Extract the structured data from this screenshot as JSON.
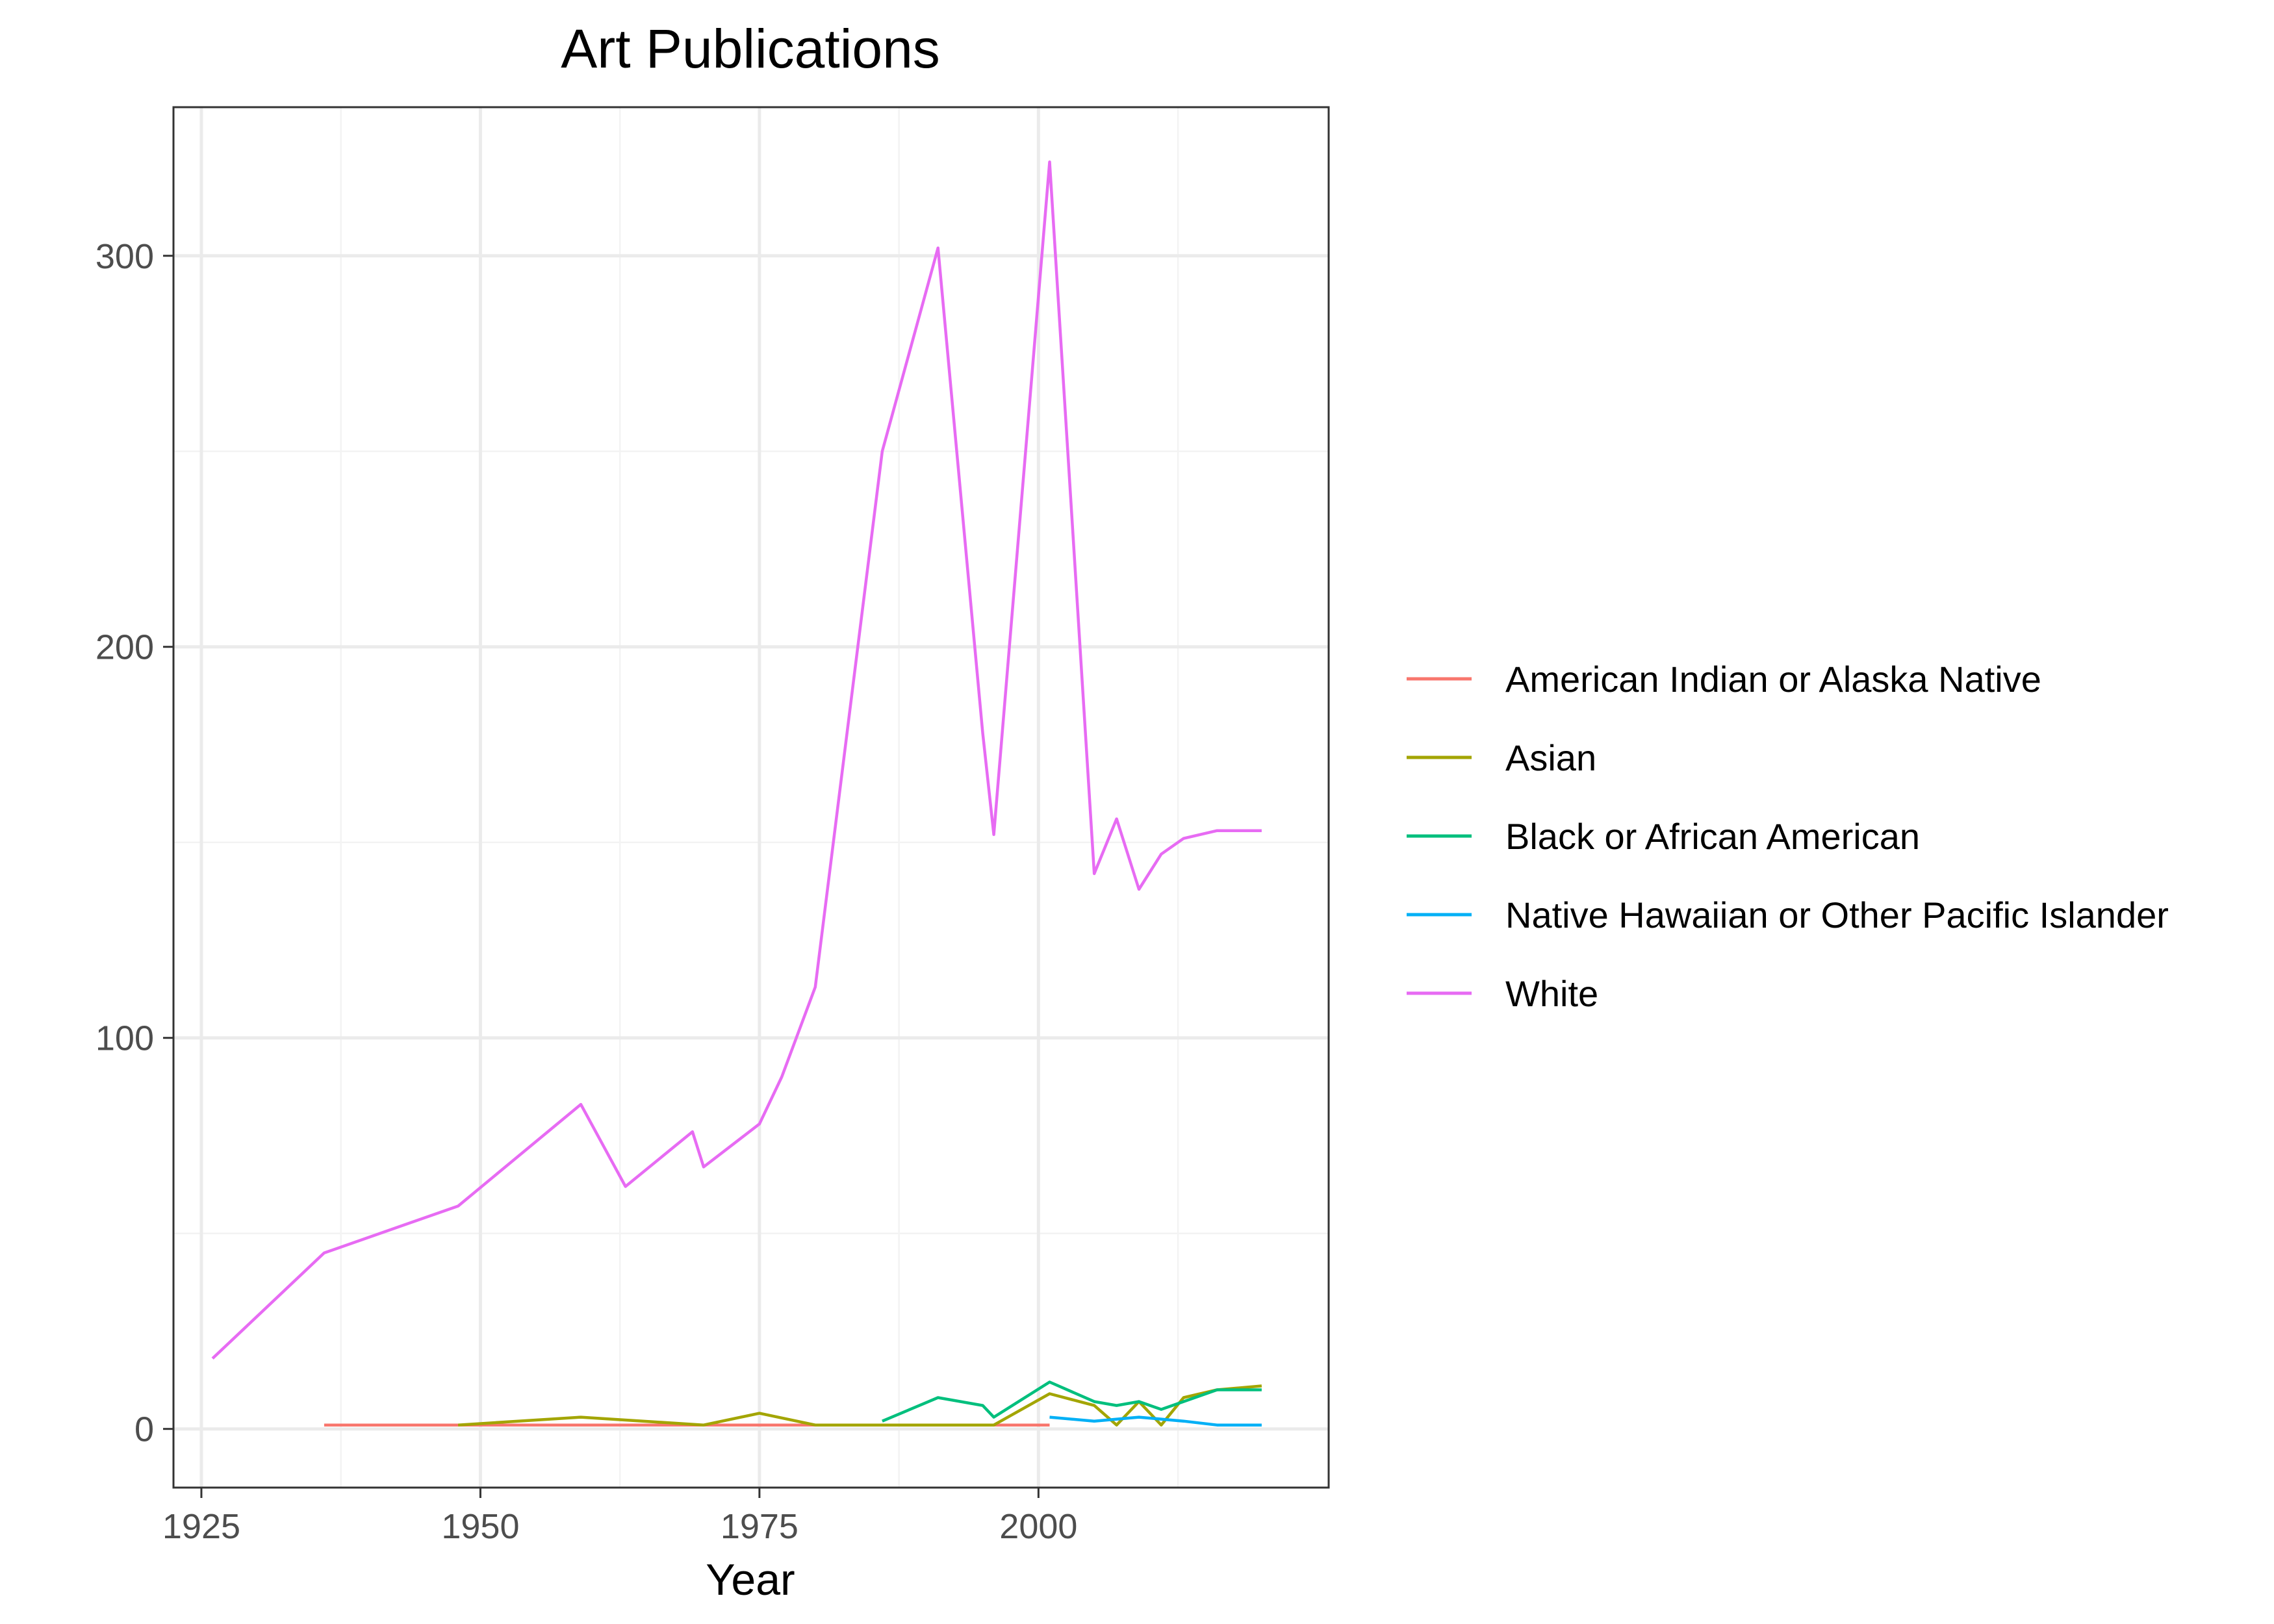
{
  "chart_data": {
    "type": "line",
    "title": "Art Publications",
    "xlabel": "Year",
    "ylabel": "",
    "xlim": [
      1922.5,
      2026
    ],
    "ylim": [
      -15,
      338
    ],
    "x_ticks": [
      1925,
      1950,
      1975,
      2000
    ],
    "y_ticks": [
      0,
      100,
      200,
      300
    ],
    "grid": true,
    "legend_position": "right",
    "series": [
      {
        "name": "American Indian or Alaska Native",
        "color": "#F8766D",
        "points": [
          [
            1936,
            1
          ],
          [
            2001,
            1
          ]
        ]
      },
      {
        "name": "Asian",
        "color": "#A3A500",
        "points": [
          [
            1948,
            1
          ],
          [
            1959,
            3
          ],
          [
            1970,
            1
          ],
          [
            1975,
            4
          ],
          [
            1980,
            1
          ],
          [
            1996,
            1
          ],
          [
            2001,
            9
          ],
          [
            2005,
            6
          ],
          [
            2007,
            1
          ],
          [
            2009,
            7
          ],
          [
            2011,
            1
          ],
          [
            2013,
            8
          ],
          [
            2016,
            10
          ],
          [
            2020,
            11
          ]
        ]
      },
      {
        "name": "Black or African American",
        "color": "#00BF7D",
        "points": [
          [
            1986,
            2
          ],
          [
            1991,
            8
          ],
          [
            1995,
            6
          ],
          [
            1996,
            3
          ],
          [
            2001,
            12
          ],
          [
            2005,
            7
          ],
          [
            2007,
            6
          ],
          [
            2009,
            7
          ],
          [
            2011,
            5
          ],
          [
            2013,
            7
          ],
          [
            2016,
            10
          ],
          [
            2020,
            10
          ]
        ]
      },
      {
        "name": "Native Hawaiian or Other Pacific Islander",
        "color": "#00B0F6",
        "points": [
          [
            2001,
            3
          ],
          [
            2005,
            2
          ],
          [
            2009,
            3
          ],
          [
            2013,
            2
          ],
          [
            2016,
            1
          ],
          [
            2020,
            1
          ]
        ]
      },
      {
        "name": "White",
        "color": "#E76BF3",
        "points": [
          [
            1926,
            18
          ],
          [
            1936,
            45
          ],
          [
            1948,
            57
          ],
          [
            1959,
            83
          ],
          [
            1963,
            62
          ],
          [
            1969,
            76
          ],
          [
            1970,
            67
          ],
          [
            1975,
            78
          ],
          [
            1977,
            90
          ],
          [
            1980,
            113
          ],
          [
            1986,
            250
          ],
          [
            1991,
            302
          ],
          [
            1995,
            178
          ],
          [
            1996,
            152
          ],
          [
            2001,
            324
          ],
          [
            2005,
            142
          ],
          [
            2007,
            156
          ],
          [
            2009,
            138
          ],
          [
            2011,
            147
          ],
          [
            2013,
            151
          ],
          [
            2016,
            153
          ],
          [
            2020,
            153
          ]
        ]
      }
    ]
  }
}
